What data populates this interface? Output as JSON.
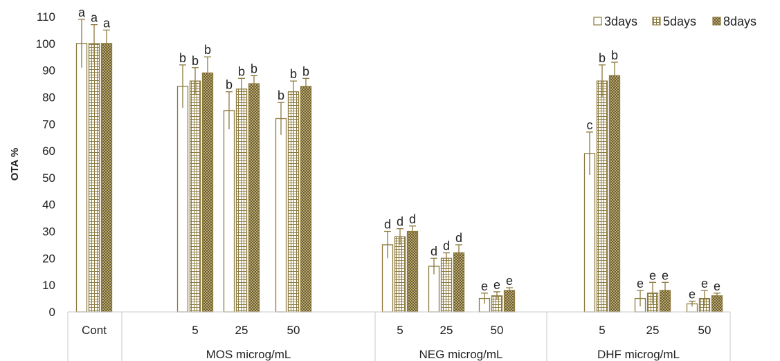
{
  "chart_data": {
    "type": "bar",
    "ylabel": "OTA %",
    "xlabel": "",
    "ylim": [
      0,
      110
    ],
    "yticks": [
      "0",
      "10",
      "20",
      "30",
      "40",
      "50",
      "60",
      "70",
      "80",
      "90",
      "100",
      "110"
    ],
    "legend_position": "top-right",
    "bar_color": "#8c7a3e",
    "groups": [
      {
        "name": "",
        "categories": [
          {
            "label": "Cont",
            "bars": [
              {
                "series": "3days",
                "value": 100,
                "error": 9,
                "letter": "a"
              },
              {
                "series": "5days",
                "value": 100,
                "error": 7,
                "letter": "a"
              },
              {
                "series": "8days",
                "value": 100,
                "error": 5,
                "letter": "a"
              }
            ]
          }
        ]
      },
      {
        "name": "MOS microg/mL",
        "categories": [
          {
            "label": "5",
            "bars": [
              {
                "series": "3days",
                "value": 84,
                "error": 8,
                "letter": "b"
              },
              {
                "series": "5days",
                "value": 86,
                "error": 5,
                "letter": "b"
              },
              {
                "series": "8days",
                "value": 89,
                "error": 6,
                "letter": "b"
              }
            ]
          },
          {
            "label": "25",
            "bars": [
              {
                "series": "3days",
                "value": 75,
                "error": 7,
                "letter": "b"
              },
              {
                "series": "5days",
                "value": 83,
                "error": 4,
                "letter": "b"
              },
              {
                "series": "8days",
                "value": 85,
                "error": 3,
                "letter": "b"
              }
            ]
          },
          {
            "label": "50",
            "bars": [
              {
                "series": "3days",
                "value": 72,
                "error": 6,
                "letter": "b"
              },
              {
                "series": "5days",
                "value": 82,
                "error": 4,
                "letter": "b"
              },
              {
                "series": "8days",
                "value": 84,
                "error": 3,
                "letter": "b"
              }
            ]
          }
        ]
      },
      {
        "name": "NEG microg/mL",
        "categories": [
          {
            "label": "5",
            "bars": [
              {
                "series": "3days",
                "value": 25,
                "error": 5,
                "letter": "d"
              },
              {
                "series": "5days",
                "value": 28,
                "error": 3,
                "letter": "d"
              },
              {
                "series": "8days",
                "value": 30,
                "error": 2,
                "letter": "d"
              }
            ]
          },
          {
            "label": "25",
            "bars": [
              {
                "series": "3days",
                "value": 17,
                "error": 3,
                "letter": "d"
              },
              {
                "series": "5days",
                "value": 20,
                "error": 2,
                "letter": "d"
              },
              {
                "series": "8days",
                "value": 22,
                "error": 3,
                "letter": "d"
              }
            ]
          },
          {
            "label": "50",
            "bars": [
              {
                "series": "3days",
                "value": 5,
                "error": 2,
                "letter": "e"
              },
              {
                "series": "5days",
                "value": 6,
                "error": 1.5,
                "letter": "e"
              },
              {
                "series": "8days",
                "value": 8,
                "error": 1,
                "letter": "e"
              }
            ]
          }
        ]
      },
      {
        "name": "DHF microg/mL",
        "categories": [
          {
            "label": "5",
            "bars": [
              {
                "series": "3days",
                "value": 59,
                "error": 8,
                "letter": "c"
              },
              {
                "series": "5days",
                "value": 86,
                "error": 6,
                "letter": "b"
              },
              {
                "series": "8days",
                "value": 88,
                "error": 5,
                "letter": "b"
              }
            ]
          },
          {
            "label": "25",
            "bars": [
              {
                "series": "3days",
                "value": 5,
                "error": 3,
                "letter": "e"
              },
              {
                "series": "5days",
                "value": 7,
                "error": 4,
                "letter": "e"
              },
              {
                "series": "8days",
                "value": 8,
                "error": 3,
                "letter": "e"
              }
            ]
          },
          {
            "label": "50",
            "bars": [
              {
                "series": "3days",
                "value": 3,
                "error": 1,
                "letter": "e"
              },
              {
                "series": "5days",
                "value": 5,
                "error": 3,
                "letter": "e"
              },
              {
                "series": "8days",
                "value": 6,
                "error": 1,
                "letter": "e"
              }
            ]
          }
        ]
      }
    ],
    "series": [
      {
        "name": "3days",
        "pattern": "empty"
      },
      {
        "name": "5days",
        "pattern": "grid"
      },
      {
        "name": "8days",
        "pattern": "checker"
      }
    ]
  }
}
